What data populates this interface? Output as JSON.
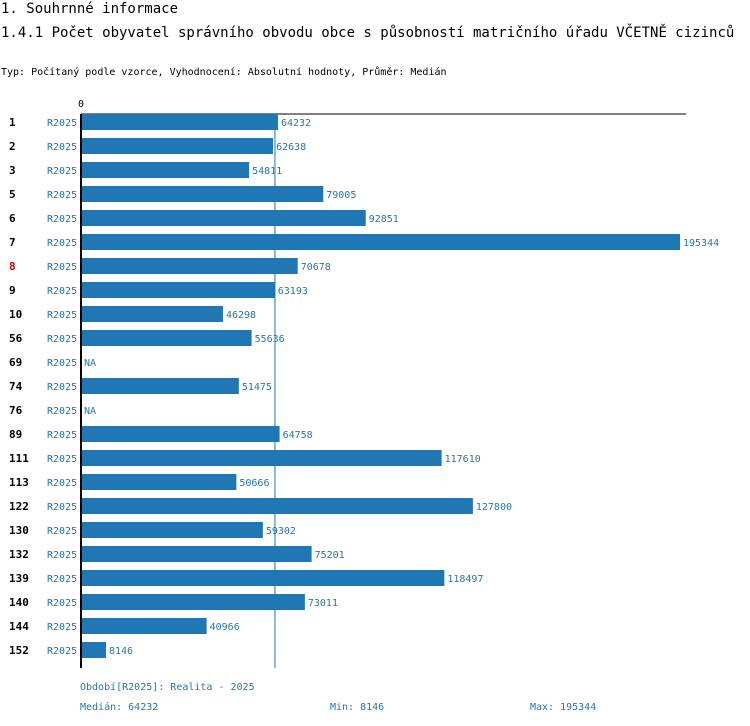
{
  "section_title": "1. Souhrnné informace",
  "chart_title": "1.4.1 Počet obyvatel správního obvodu obce s působností matričního úřadu VČETNĚ cizinců",
  "subtitle": "Typ: Počítaný podle vzorce, Vyhodnocení: Absolutní hodnoty, Průměr: Medián",
  "colors": {
    "bar": "#1f77b4",
    "highlight_label": "#cc0000",
    "axis": "#000000",
    "text": "#000000"
  },
  "footer": {
    "period": "Období[R2025]: Realita - 2025",
    "median": "Medián: 64232",
    "min": "Min: 8146",
    "max": "Max: 195344"
  },
  "chart_data": {
    "type": "bar",
    "orientation": "horizontal",
    "title": "1.4.1 Počet obyvatel správního obvodu obce s působností matričního úřadu VČETNĚ cizinců",
    "axis_zero_label": "0",
    "xlim": [
      0,
      195344
    ],
    "median": 64232,
    "series_label": "R2025",
    "highlight_category": "8",
    "na_label": "NA",
    "categories": [
      "1",
      "2",
      "3",
      "5",
      "6",
      "7",
      "8",
      "9",
      "10",
      "56",
      "69",
      "74",
      "76",
      "89",
      "111",
      "113",
      "122",
      "130",
      "132",
      "139",
      "140",
      "144",
      "152"
    ],
    "values": [
      64232,
      62638,
      54811,
      79005,
      92851,
      195344,
      70678,
      63193,
      46298,
      55636,
      null,
      51475,
      null,
      64758,
      117610,
      50666,
      127800,
      59302,
      75201,
      118497,
      73011,
      40966,
      8146
    ]
  }
}
